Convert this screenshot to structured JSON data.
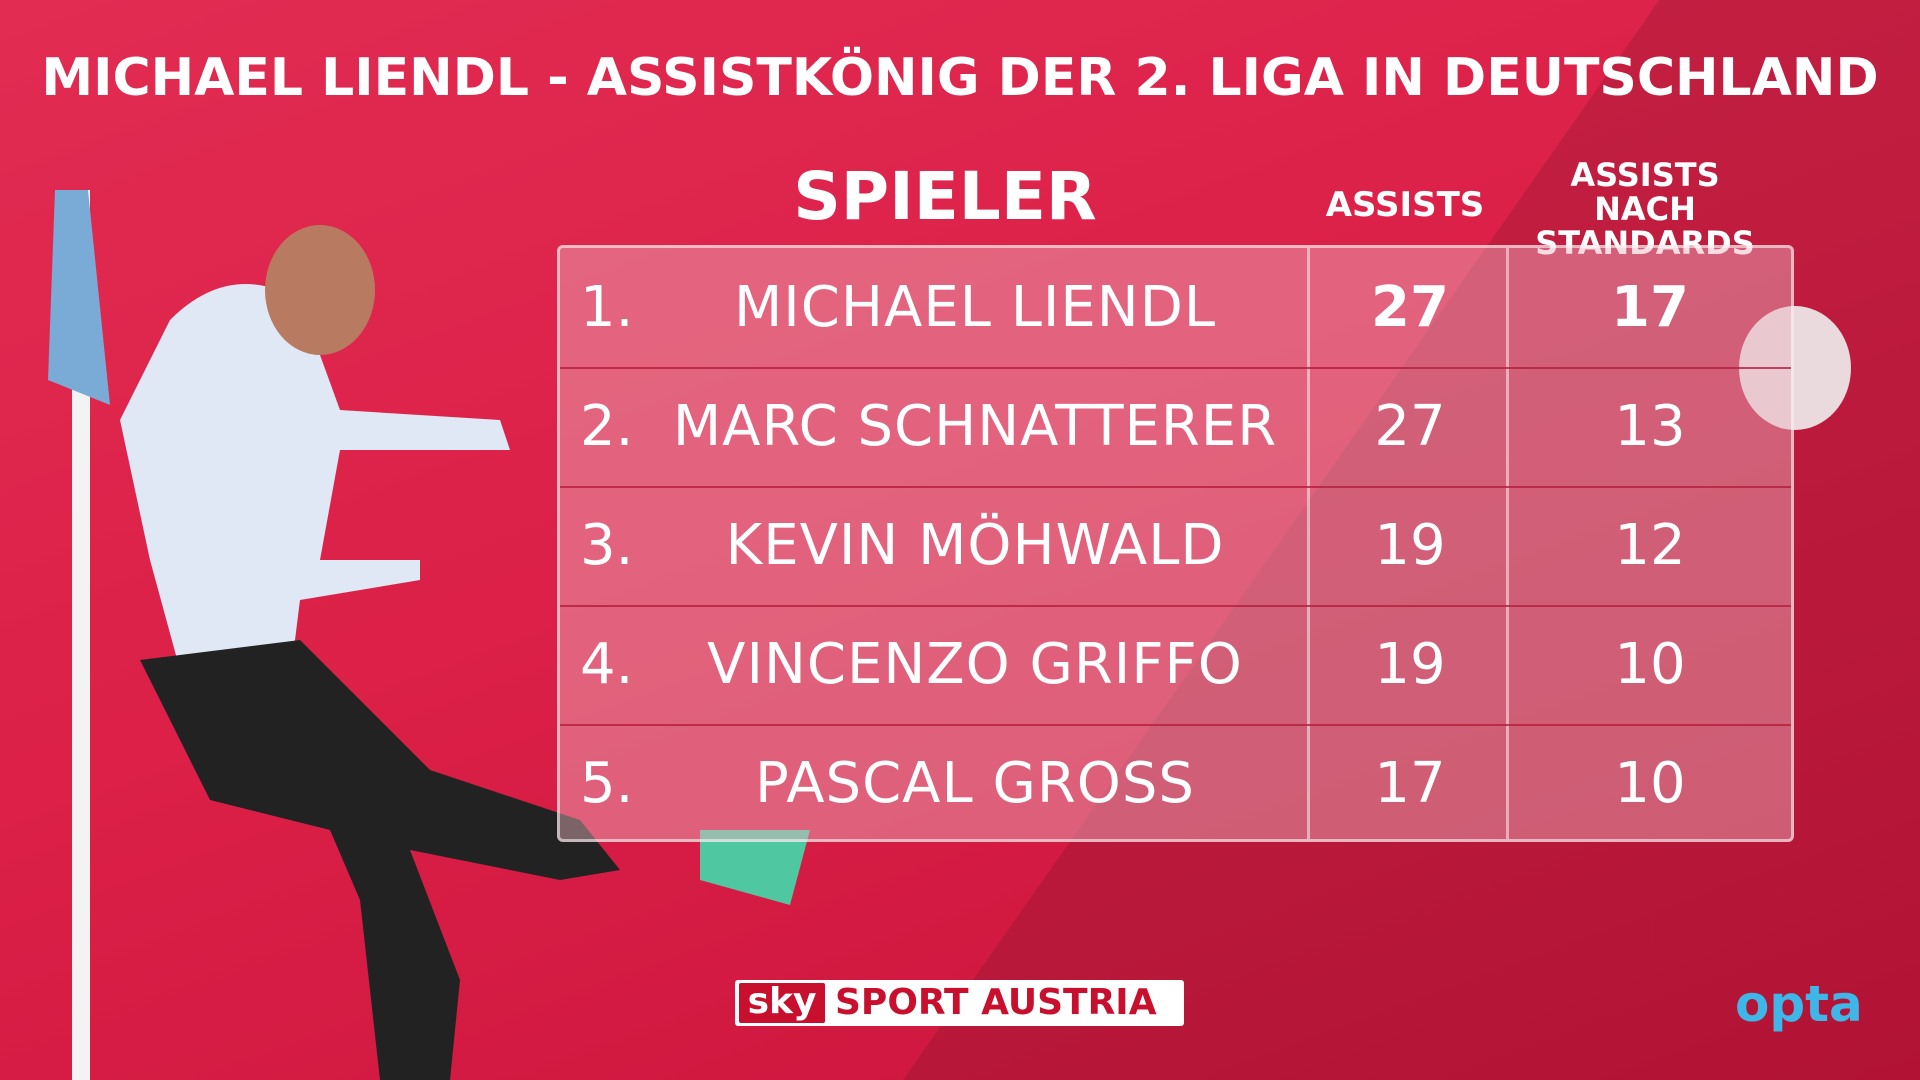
{
  "header": {
    "title": "MICHAEL LIENDL - ASSISTKÖNIG DER 2. LIGA IN DEUTSCHLAND"
  },
  "table": {
    "columns": [
      "SPIELER",
      "ASSISTS",
      "ASSISTS NACH STANDARDS"
    ],
    "rows": [
      [
        "1.",
        "MICHAEL LIENDL",
        27,
        17
      ],
      [
        "2.",
        "MARC SCHNATTERER",
        27,
        13
      ],
      [
        "3.",
        "KEVIN MÖHWALD",
        19,
        12
      ],
      [
        "4.",
        "VINCENZO GRIFFO",
        19,
        10
      ],
      [
        "5.",
        "PASCAL GROSS",
        17,
        10
      ]
    ]
  },
  "footer": {
    "broadcaster_mark": "sky",
    "broadcaster_name": "SPORT AUSTRIA",
    "provider": "opta"
  }
}
